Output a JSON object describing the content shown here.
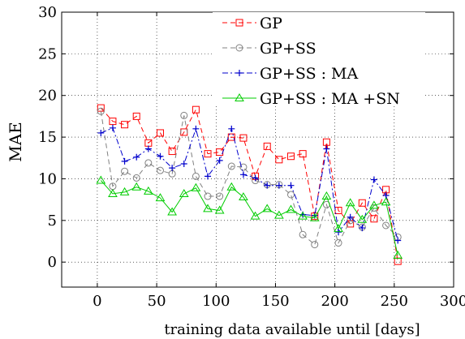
{
  "chart_data": {
    "type": "line",
    "title": "",
    "xlabel": "training data available until [days]",
    "ylabel": "MAE",
    "xlim": [
      -30,
      300
    ],
    "ylim": [
      -3,
      30
    ],
    "xticks": [
      0,
      50,
      100,
      150,
      200,
      250,
      300
    ],
    "yticks": [
      0,
      5,
      10,
      15,
      20,
      25,
      30
    ],
    "grid": true,
    "legend_position": "top-center",
    "x": [
      3,
      13,
      23,
      33,
      43,
      53,
      63,
      73,
      83,
      93,
      103,
      113,
      123,
      133,
      143,
      153,
      163,
      173,
      183,
      193,
      203,
      213,
      223,
      233,
      243,
      253
    ],
    "series": [
      {
        "name": "GP",
        "color": "#ff0000",
        "marker": "square",
        "dash": "dashed",
        "values": [
          18.5,
          16.9,
          16.5,
          17.5,
          14.3,
          15.5,
          13.3,
          15.6,
          18.3,
          13.0,
          13.2,
          15.0,
          14.9,
          10.3,
          13.9,
          12.3,
          12.7,
          13.0,
          5.5,
          14.4,
          6.2,
          4.6,
          7.1,
          5.2,
          8.7,
          0.1
        ]
      },
      {
        "name": "GP+SS",
        "color": "#808080",
        "marker": "circle",
        "dash": "dashed",
        "values": [
          18.1,
          9.1,
          10.9,
          10.1,
          11.9,
          11.0,
          10.6,
          17.6,
          10.3,
          7.9,
          7.9,
          11.5,
          11.4,
          9.8,
          9.3,
          9.3,
          8.1,
          3.3,
          2.1,
          6.9,
          2.3,
          5.0,
          4.2,
          6.5,
          4.4,
          3.0
        ]
      },
      {
        "name": "GP+SS : MA",
        "color": "#0000cc",
        "marker": "plus",
        "dash": "dashdot",
        "values": [
          15.5,
          16.1,
          12.1,
          12.6,
          13.6,
          12.7,
          11.3,
          11.8,
          16.0,
          10.3,
          12.2,
          16.0,
          10.5,
          10.1,
          9.2,
          9.2,
          9.2,
          5.7,
          5.6,
          13.6,
          3.6,
          5.4,
          4.1,
          9.9,
          8.0,
          2.6
        ]
      },
      {
        "name": "GP+SS : MA +SN",
        "color": "#00cc00",
        "marker": "triangle",
        "dash": "solid",
        "values": [
          9.8,
          8.2,
          8.4,
          9.0,
          8.5,
          7.7,
          6.0,
          8.2,
          8.9,
          6.4,
          6.2,
          9.0,
          7.8,
          5.5,
          6.4,
          5.6,
          6.3,
          5.5,
          5.3,
          7.9,
          4.0,
          7.1,
          5.1,
          6.8,
          7.2,
          0.8
        ]
      }
    ]
  }
}
